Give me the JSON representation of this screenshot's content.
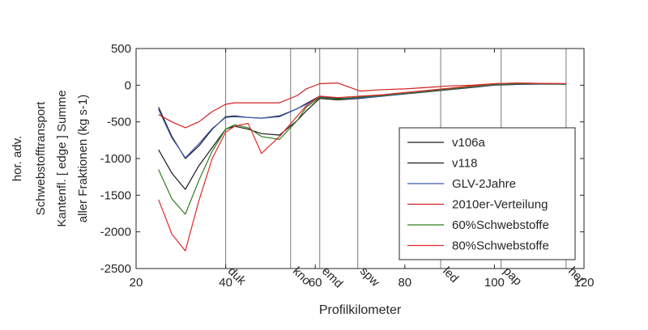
{
  "chart_data": {
    "type": "line",
    "title": "",
    "xlabel": "Profilkilometer",
    "ylabel_lines": [
      "hor. adv.",
      "Schwebstofftransport",
      "Kantenfl. [ edge ] Summe",
      "aller Fraktionen (kg s-1)"
    ],
    "xlim": [
      20,
      120
    ],
    "ylim": [
      -2500,
      500
    ],
    "xticks": [
      20,
      40,
      60,
      80,
      100,
      120
    ],
    "yticks": [
      500,
      0,
      -500,
      -1000,
      -1500,
      -2000,
      -2500
    ],
    "grid": "x-markers-only",
    "legend_position": "lower-right inside",
    "x_markers": [
      {
        "x": 40.0,
        "label": "duk"
      },
      {
        "x": 54.5,
        "label": "kno"
      },
      {
        "x": 61.0,
        "label": "emd"
      },
      {
        "x": 69.5,
        "label": "spw"
      },
      {
        "x": 88.0,
        "label": "led"
      },
      {
        "x": 101.5,
        "label": "pap"
      },
      {
        "x": 116.0,
        "label": "her"
      }
    ],
    "series": [
      {
        "name": "v106a",
        "color": "#1a1a1a",
        "x": [
          25,
          28,
          31,
          34,
          37,
          40,
          42,
          45,
          48,
          52,
          56,
          58,
          61,
          65,
          70,
          75,
          80,
          85,
          90,
          95,
          100,
          105,
          110,
          116
        ],
        "y": [
          -880,
          -1200,
          -1420,
          -1100,
          -850,
          -600,
          -560,
          -600,
          -660,
          -680,
          -480,
          -350,
          -180,
          -200,
          -180,
          -150,
          -120,
          -90,
          -60,
          -30,
          0,
          10,
          15,
          15
        ]
      },
      {
        "name": "v118",
        "color": "#1a1a1a",
        "x": [
          25,
          28,
          31,
          34,
          37,
          40,
          42,
          45,
          48,
          52,
          56,
          58,
          61,
          65,
          70,
          75,
          80,
          85,
          90,
          95,
          100,
          105,
          110,
          116
        ],
        "y": [
          -300,
          -700,
          -1000,
          -830,
          -600,
          -430,
          -420,
          -440,
          -450,
          -420,
          -320,
          -250,
          -150,
          -180,
          -170,
          -140,
          -110,
          -80,
          -50,
          -20,
          5,
          15,
          18,
          15
        ]
      },
      {
        "name": "GLV-2Jahre",
        "color": "#3b5bb3",
        "x": [
          25,
          28,
          31,
          34,
          37,
          40,
          42,
          45,
          48,
          52,
          56,
          58,
          61,
          65,
          70,
          75,
          80,
          85,
          90,
          95,
          100,
          105,
          110,
          116
        ],
        "y": [
          -330,
          -720,
          -990,
          -800,
          -590,
          -440,
          -430,
          -440,
          -450,
          -430,
          -320,
          -260,
          -160,
          -190,
          -175,
          -150,
          -115,
          -85,
          -55,
          -25,
          5,
          15,
          15,
          12
        ]
      },
      {
        "name": "2010er-Verteilung",
        "color": "#d02020",
        "x": [
          25,
          28,
          31,
          34,
          37,
          40,
          42,
          45,
          48,
          52,
          56,
          58,
          61,
          65,
          70,
          75,
          80,
          85,
          90,
          95,
          100,
          105,
          110,
          116
        ],
        "y": [
          -400,
          -500,
          -580,
          -500,
          -360,
          -260,
          -240,
          -240,
          -240,
          -240,
          -140,
          -50,
          20,
          30,
          -80,
          -60,
          -50,
          -30,
          -10,
          0,
          20,
          30,
          25,
          20
        ]
      },
      {
        "name": "60%Schwebstoffe",
        "color": "#2e7d1e",
        "x": [
          25,
          28,
          31,
          34,
          37,
          40,
          42,
          45,
          48,
          52,
          56,
          58,
          61,
          65,
          70,
          75,
          80,
          85,
          90,
          95,
          100,
          105,
          110,
          116
        ],
        "y": [
          -1150,
          -1550,
          -1760,
          -1300,
          -900,
          -600,
          -540,
          -580,
          -700,
          -740,
          -480,
          -300,
          -170,
          -190,
          -160,
          -140,
          -110,
          -80,
          -50,
          -20,
          10,
          20,
          20,
          15
        ]
      },
      {
        "name": "80%Schwebstoffe",
        "color": "#e02a2a",
        "x": [
          25,
          28,
          31,
          34,
          37,
          40,
          42,
          45,
          48,
          52,
          56,
          58,
          61,
          65,
          70,
          75,
          80,
          85,
          90,
          95,
          100,
          105,
          110,
          116
        ],
        "y": [
          -1560,
          -2030,
          -2260,
          -1580,
          -1000,
          -640,
          -560,
          -520,
          -930,
          -700,
          -420,
          -280,
          -150,
          -170,
          -150,
          -130,
          -100,
          -70,
          -40,
          -10,
          20,
          30,
          25,
          20
        ]
      }
    ]
  }
}
